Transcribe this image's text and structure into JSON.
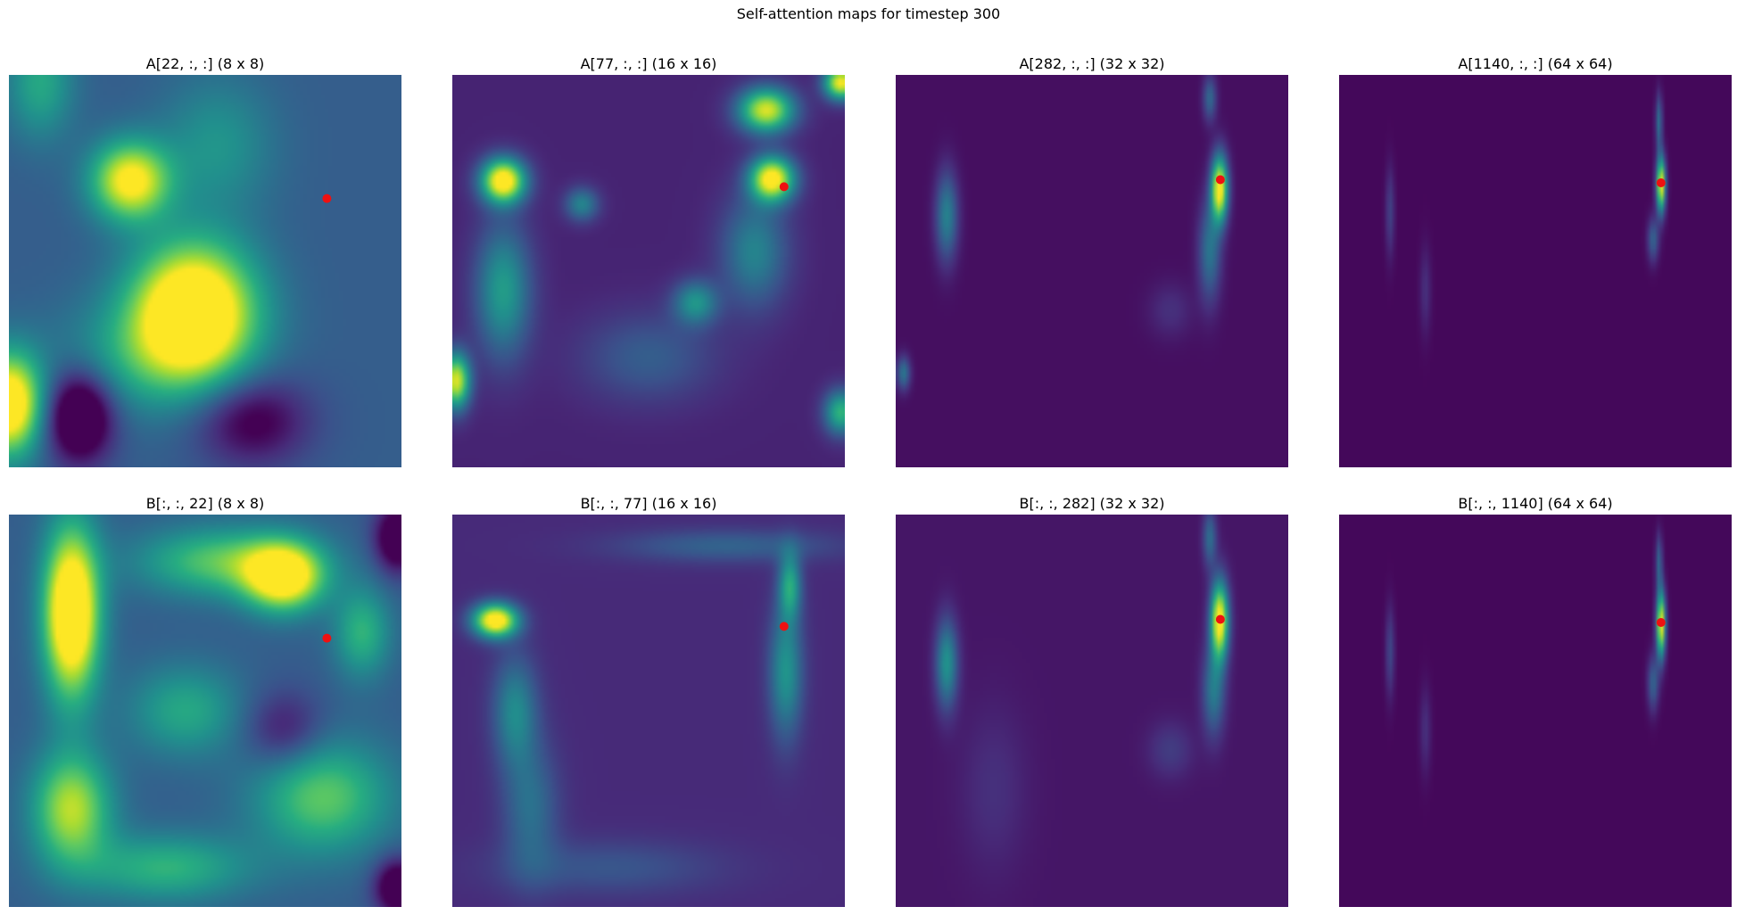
{
  "title": "Self-attention maps for timestep 300",
  "chart_data": [
    {
      "type": "heatmap",
      "title": "A[22, :, :] (8 x 8)",
      "grid": false,
      "query_point": [
        0.81,
        0.315
      ],
      "blobs": [
        [
          0.47,
          0.6,
          0.11,
          0.12,
          1.0
        ],
        [
          0.31,
          0.27,
          0.07,
          0.07,
          0.75
        ],
        [
          0.0,
          0.84,
          0.06,
          0.09,
          0.9
        ],
        [
          0.08,
          0.02,
          0.06,
          0.1,
          0.3
        ],
        [
          0.53,
          0.18,
          0.1,
          0.12,
          0.22
        ],
        [
          0.35,
          0.72,
          0.16,
          0.1,
          0.25
        ]
      ],
      "dark": [
        [
          0.18,
          0.87,
          0.06,
          0.08,
          0.6
        ],
        [
          0.62,
          0.88,
          0.1,
          0.08,
          0.35
        ]
      ],
      "base": 0.3
    },
    {
      "type": "heatmap",
      "title": "A[77, :, :] (16 x 16)",
      "grid": false,
      "query_point": [
        0.845,
        0.285
      ],
      "blobs": [
        [
          0.13,
          0.27,
          0.04,
          0.04,
          1.0
        ],
        [
          0.8,
          0.09,
          0.05,
          0.04,
          0.85
        ],
        [
          0.815,
          0.265,
          0.04,
          0.04,
          0.95
        ],
        [
          0.99,
          0.02,
          0.03,
          0.03,
          0.9
        ],
        [
          0.01,
          0.78,
          0.025,
          0.05,
          0.85
        ],
        [
          0.13,
          0.55,
          0.05,
          0.12,
          0.45
        ],
        [
          0.33,
          0.33,
          0.03,
          0.03,
          0.35
        ],
        [
          0.62,
          0.58,
          0.04,
          0.04,
          0.4
        ],
        [
          0.77,
          0.45,
          0.06,
          0.1,
          0.35
        ],
        [
          0.99,
          0.86,
          0.03,
          0.04,
          0.55
        ],
        [
          0.5,
          0.72,
          0.12,
          0.08,
          0.2
        ]
      ],
      "dark": [],
      "base": 0.1
    },
    {
      "type": "heatmap",
      "title": "A[282, :, :] (32 x 32)",
      "grid": false,
      "query_point": [
        0.827,
        0.267
      ],
      "blobs": [
        [
          0.825,
          0.29,
          0.015,
          0.06,
          1.0
        ],
        [
          0.8,
          0.45,
          0.02,
          0.09,
          0.35
        ],
        [
          0.8,
          0.06,
          0.012,
          0.04,
          0.3
        ],
        [
          0.13,
          0.36,
          0.02,
          0.08,
          0.4
        ],
        [
          0.02,
          0.76,
          0.012,
          0.03,
          0.35
        ],
        [
          0.7,
          0.6,
          0.04,
          0.05,
          0.1
        ]
      ],
      "dark": [],
      "base": 0.04
    },
    {
      "type": "heatmap",
      "title": "A[1140, :, :] (64 x 64)",
      "grid": false,
      "query_point": [
        0.82,
        0.275
      ],
      "blobs": [
        [
          0.82,
          0.28,
          0.008,
          0.05,
          1.0
        ],
        [
          0.815,
          0.12,
          0.006,
          0.05,
          0.35
        ],
        [
          0.8,
          0.42,
          0.01,
          0.04,
          0.3
        ],
        [
          0.13,
          0.35,
          0.008,
          0.08,
          0.18
        ],
        [
          0.22,
          0.55,
          0.01,
          0.08,
          0.12
        ]
      ],
      "dark": [],
      "base": 0.02
    },
    {
      "type": "heatmap",
      "title": "B[:, :, 22] (8 x 8)",
      "grid": false,
      "query_point": [
        0.81,
        0.315
      ],
      "blobs": [
        [
          0.16,
          0.25,
          0.05,
          0.15,
          1.0
        ],
        [
          0.7,
          0.16,
          0.07,
          0.06,
          0.8
        ],
        [
          0.16,
          0.75,
          0.07,
          0.1,
          0.6
        ],
        [
          0.55,
          0.12,
          0.15,
          0.06,
          0.45
        ],
        [
          0.8,
          0.72,
          0.12,
          0.1,
          0.45
        ],
        [
          0.45,
          0.5,
          0.1,
          0.08,
          0.3
        ],
        [
          0.9,
          0.3,
          0.05,
          0.08,
          0.35
        ],
        [
          0.4,
          0.9,
          0.15,
          0.06,
          0.35
        ]
      ],
      "dark": [
        [
          0.99,
          0.06,
          0.04,
          0.06,
          0.5
        ],
        [
          0.99,
          0.95,
          0.04,
          0.05,
          0.5
        ],
        [
          0.7,
          0.55,
          0.07,
          0.07,
          0.25
        ]
      ],
      "base": 0.3
    },
    {
      "type": "heatmap",
      "title": "B[:, :, 77] (16 x 16)",
      "grid": false,
      "query_point": [
        0.845,
        0.285
      ],
      "blobs": [
        [
          0.11,
          0.27,
          0.04,
          0.03,
          1.0
        ],
        [
          0.86,
          0.18,
          0.02,
          0.06,
          0.45
        ],
        [
          0.85,
          0.4,
          0.03,
          0.12,
          0.4
        ],
        [
          0.16,
          0.5,
          0.04,
          0.1,
          0.35
        ],
        [
          0.2,
          0.75,
          0.05,
          0.12,
          0.25
        ],
        [
          0.7,
          0.08,
          0.2,
          0.03,
          0.2
        ],
        [
          0.4,
          0.9,
          0.2,
          0.05,
          0.15
        ]
      ],
      "dark": [],
      "base": 0.12
    },
    {
      "type": "heatmap",
      "title": "B[:, :, 282] (32 x 32)",
      "grid": false,
      "query_point": [
        0.827,
        0.267
      ],
      "blobs": [
        [
          0.825,
          0.27,
          0.016,
          0.07,
          1.0
        ],
        [
          0.81,
          0.45,
          0.02,
          0.08,
          0.35
        ],
        [
          0.8,
          0.06,
          0.012,
          0.05,
          0.3
        ],
        [
          0.13,
          0.38,
          0.02,
          0.08,
          0.45
        ],
        [
          0.25,
          0.7,
          0.06,
          0.15,
          0.08
        ],
        [
          0.7,
          0.6,
          0.04,
          0.05,
          0.12
        ]
      ],
      "dark": [],
      "base": 0.06
    },
    {
      "type": "heatmap",
      "title": "B[:, :, 1140] (64 x 64)",
      "grid": false,
      "query_point": [
        0.82,
        0.275
      ],
      "blobs": [
        [
          0.82,
          0.28,
          0.008,
          0.06,
          1.0
        ],
        [
          0.815,
          0.12,
          0.006,
          0.05,
          0.3
        ],
        [
          0.8,
          0.43,
          0.01,
          0.05,
          0.3
        ],
        [
          0.13,
          0.35,
          0.008,
          0.08,
          0.2
        ],
        [
          0.22,
          0.55,
          0.01,
          0.08,
          0.12
        ]
      ],
      "dark": [],
      "base": 0.02
    }
  ]
}
